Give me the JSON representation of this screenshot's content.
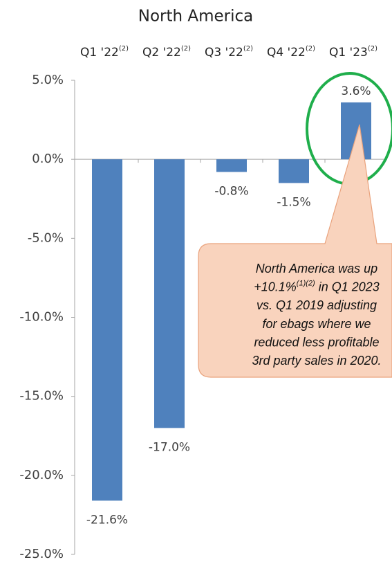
{
  "chart_data": {
    "type": "bar",
    "title": "North America",
    "categories": [
      "Q1 '22",
      "Q2 '22",
      "Q3 '22",
      "Q4 '22",
      "Q1 '23"
    ],
    "category_footnotes": [
      "(2)",
      "(2)",
      "(2)",
      "(2)",
      "(2)"
    ],
    "values": [
      -21.6,
      -17.0,
      -0.8,
      -1.5,
      3.6
    ],
    "value_labels": [
      "-21.6%",
      "-17.0%",
      "-0.8%",
      "-1.5%",
      "3.6%"
    ],
    "color": "#4f81bd",
    "ylim": [
      -25,
      5
    ],
    "yticks": [
      {
        "value": 5,
        "label": "5.0%"
      },
      {
        "value": 0,
        "label": "0.0%"
      },
      {
        "value": -5,
        "label": "-5.0%"
      },
      {
        "value": -10,
        "label": "-10.0%"
      },
      {
        "value": -15,
        "label": "-15.0%"
      },
      {
        "value": -20,
        "label": "-20.0%"
      },
      {
        "value": -25,
        "label": "-25.0%"
      }
    ],
    "annotation": {
      "lines": [
        [
          {
            "text": "North America was up"
          }
        ],
        [
          {
            "text": "+10.1%"
          },
          {
            "text": "(1)(2)",
            "sup": true
          },
          {
            "text": " in Q1 2023"
          }
        ],
        [
          {
            "text": "vs. Q1 2019 adjusting"
          }
        ],
        [
          {
            "text": "for ebags where we"
          }
        ],
        [
          {
            "text": "reduced less profitable"
          }
        ],
        [
          {
            "text": "3rd party sales in 2020."
          }
        ]
      ]
    }
  }
}
